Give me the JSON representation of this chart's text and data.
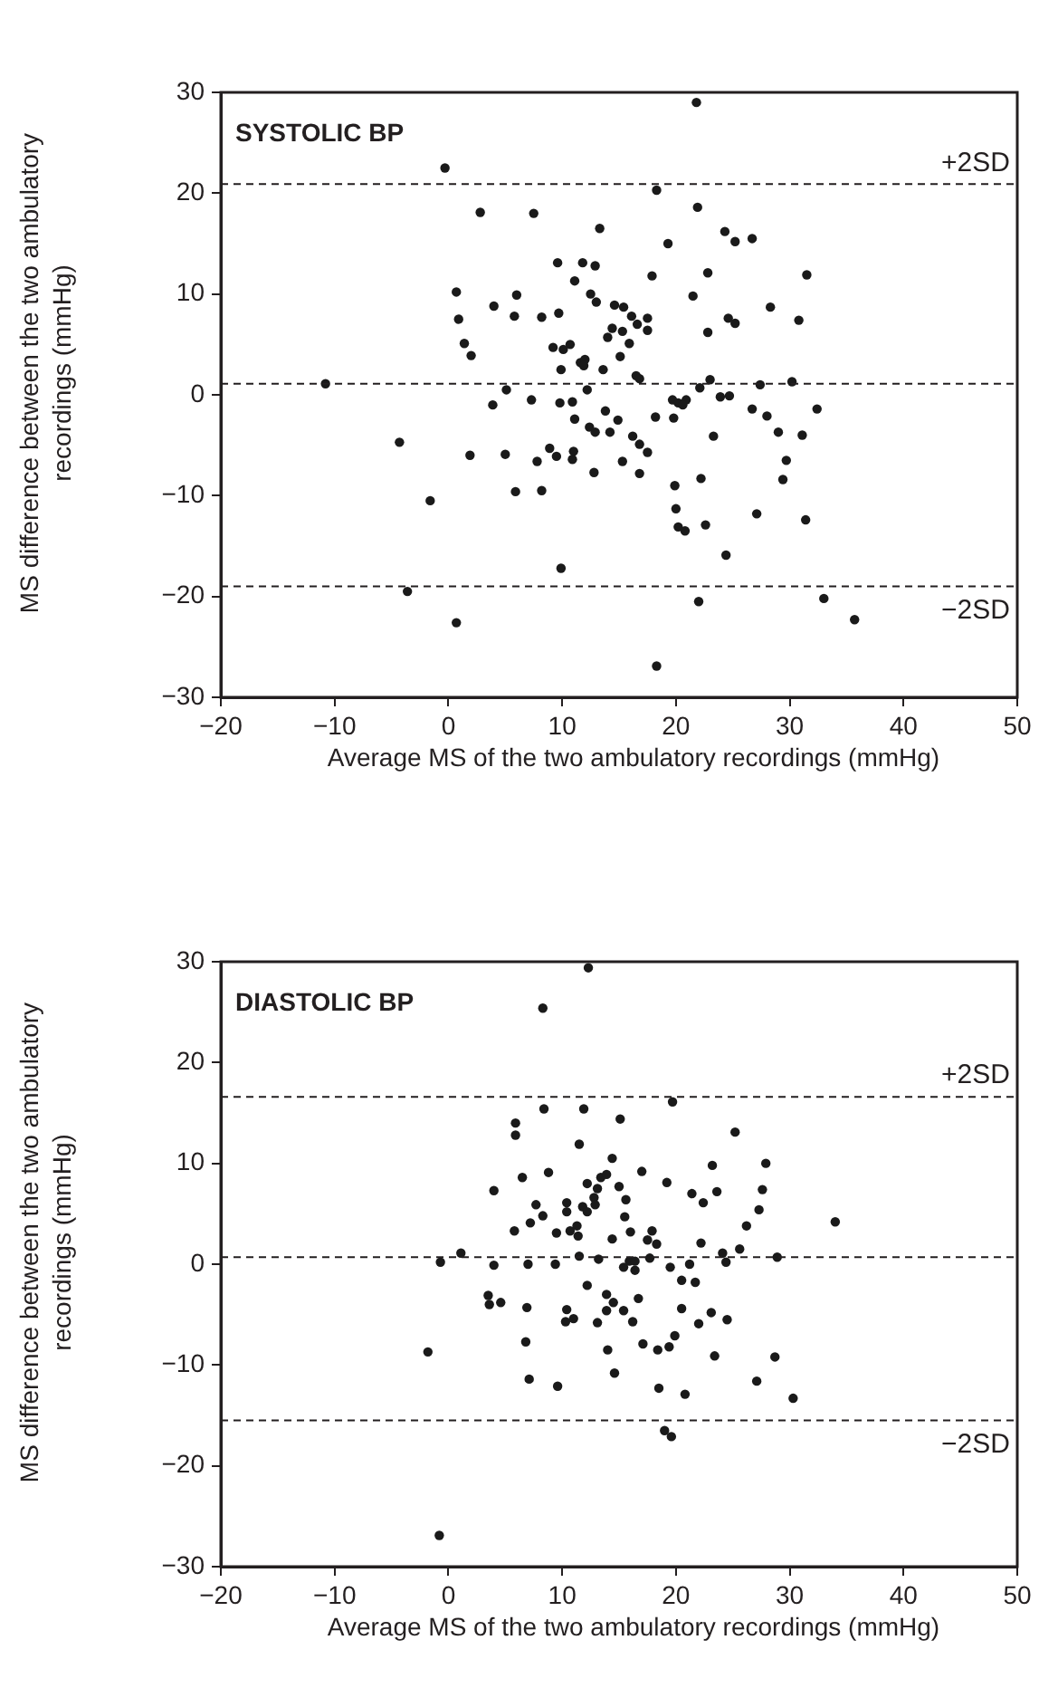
{
  "chart_data": [
    {
      "type": "scatter",
      "annotations": [
        "SYSTOLIC BP"
      ],
      "xlabel": "Average MS of the two ambulatory recordings (mmHg)",
      "ylabel": "MS difference between the two ambulatory recordings (mmHg)",
      "color": "#1a1a1a",
      "marker": "circle",
      "grid": false,
      "legend": false,
      "xlim": [
        -20,
        50
      ],
      "xticks": [
        -20,
        -10,
        0,
        10,
        20,
        30,
        40,
        50
      ],
      "ylim": [
        -30,
        30
      ],
      "yticks": [
        -30,
        -20,
        -10,
        0,
        10,
        20,
        30
      ],
      "ref_lines": [
        {
          "axis": "y",
          "value": 20.9,
          "label": "+2SD",
          "line_style": "dashed"
        },
        {
          "axis": "y",
          "value": 1.1,
          "line_style": "dashed"
        },
        {
          "axis": "y",
          "value": -19.0,
          "label": "−2SD",
          "line_style": "dashed"
        }
      ],
      "x": [
        -0.3,
        2.8,
        7.5,
        13.3,
        9.6,
        11.8,
        12.9,
        11.1,
        0.7,
        6.0,
        12.5,
        13.0,
        4.0,
        14.6,
        15.4,
        16.1,
        0.9,
        5.8,
        8.2,
        9.7,
        14.4,
        15.3,
        14.0,
        15.9,
        1.4,
        2.0,
        9.2,
        10.1,
        10.7,
        15.1,
        11.6,
        12.0,
        11.9,
        9.9,
        13.6,
        -10.8,
        12.2,
        5.1,
        3.9,
        7.3,
        9.8,
        10.9,
        11.1,
        13.8,
        14.9,
        12.4,
        12.9,
        14.2,
        16.2,
        -4.3,
        1.9,
        5.0,
        8.9,
        9.5,
        11.0,
        10.9,
        7.8,
        15.3,
        12.8,
        5.9,
        8.2,
        -1.6,
        9.9,
        -3.6,
        0.7,
        21.8,
        18.3,
        21.9,
        19.3,
        24.3,
        25.2,
        26.7,
        17.9,
        22.8,
        31.5,
        21.5,
        28.3,
        16.6,
        17.5,
        17.5,
        24.6,
        25.2,
        22.8,
        30.8,
        16.5,
        16.8,
        23.0,
        22.1,
        27.4,
        30.2,
        19.7,
        20.2,
        20.9,
        20.6,
        23.9,
        24.7,
        32.4,
        18.2,
        19.8,
        26.7,
        28.0,
        23.3,
        29.0,
        31.1,
        16.8,
        17.5,
        16.8,
        29.7,
        29.4,
        19.9,
        22.2,
        20.0,
        20.2,
        20.8,
        22.6,
        27.1,
        31.4,
        24.4,
        22.0,
        33.0,
        35.7,
        18.3
      ],
      "values": [
        22.5,
        18.1,
        18.0,
        16.5,
        13.1,
        13.1,
        12.8,
        11.3,
        10.2,
        9.9,
        10.0,
        9.2,
        8.8,
        8.9,
        8.7,
        7.8,
        7.5,
        7.8,
        7.7,
        8.1,
        6.6,
        6.3,
        5.7,
        5.1,
        5.1,
        3.9,
        4.7,
        4.5,
        5.0,
        3.8,
        3.2,
        3.5,
        2.9,
        2.5,
        2.5,
        1.1,
        0.5,
        0.5,
        -1.0,
        -0.5,
        -0.8,
        -0.7,
        -2.4,
        -1.6,
        -2.5,
        -3.2,
        -3.7,
        -3.7,
        -4.1,
        -4.7,
        -6.0,
        -5.9,
        -5.3,
        -6.1,
        -5.6,
        -6.4,
        -6.6,
        -6.6,
        -7.7,
        -9.6,
        -9.5,
        -10.5,
        -17.2,
        -19.5,
        -22.6,
        29.0,
        20.3,
        18.6,
        15.0,
        16.2,
        15.2,
        15.5,
        11.8,
        12.1,
        11.9,
        9.8,
        8.7,
        7.0,
        7.6,
        6.4,
        7.6,
        7.1,
        6.2,
        7.4,
        1.9,
        1.6,
        1.5,
        0.7,
        1.0,
        1.3,
        -0.5,
        -0.8,
        -0.5,
        -1.0,
        -0.2,
        -0.1,
        -1.4,
        -2.2,
        -2.3,
        -1.4,
        -2.1,
        -4.1,
        -3.7,
        -4.0,
        -4.9,
        -5.7,
        -7.8,
        -6.5,
        -8.4,
        -9.0,
        -8.3,
        -11.3,
        -13.1,
        -13.5,
        -12.9,
        -11.8,
        -12.4,
        -15.9,
        -20.5,
        -20.2,
        -22.3,
        -26.9
      ]
    },
    {
      "type": "scatter",
      "annotations": [
        "DIASTOLIC BP"
      ],
      "xlabel": "Average MS of the two ambulatory recordings (mmHg)",
      "ylabel": "MS difference between the two ambulatory recordings (mmHg)",
      "color": "#1a1a1a",
      "marker": "circle",
      "grid": false,
      "legend": false,
      "xlim": [
        -20,
        50
      ],
      "xticks": [
        -20,
        -10,
        0,
        10,
        20,
        30,
        40,
        50
      ],
      "ylim": [
        -30,
        30
      ],
      "yticks": [
        -30,
        -20,
        -10,
        0,
        10,
        20,
        30
      ],
      "ref_lines": [
        {
          "axis": "y",
          "value": 16.6,
          "label": "+2SD",
          "line_style": "dashed"
        },
        {
          "axis": "y",
          "value": 0.7,
          "line_style": "dashed"
        },
        {
          "axis": "y",
          "value": -15.5,
          "label": "−2SD",
          "line_style": "dashed"
        }
      ],
      "x": [
        12.3,
        8.3,
        8.4,
        11.9,
        15.1,
        5.9,
        5.9,
        11.5,
        14.4,
        8.8,
        6.5,
        13.4,
        13.9,
        12.2,
        13.1,
        15.0,
        4.0,
        12.8,
        15.6,
        7.7,
        10.4,
        11.8,
        10.4,
        12.2,
        12.9,
        8.3,
        7.2,
        15.5,
        5.8,
        9.5,
        10.7,
        11.3,
        11.4,
        16.0,
        14.4,
        1.1,
        -0.7,
        4.0,
        7.0,
        9.4,
        11.5,
        13.2,
        15.4,
        15.9,
        12.2,
        3.5,
        3.6,
        4.6,
        6.9,
        13.9,
        14.5,
        13.9,
        15.4,
        16.2,
        10.4,
        11.0,
        10.3,
        13.1,
        6.8,
        14.0,
        -1.8,
        14.6,
        7.1,
        9.6,
        -0.8,
        19.7,
        25.2,
        23.2,
        27.9,
        17.0,
        19.2,
        21.4,
        22.4,
        23.6,
        27.6,
        27.3,
        26.2,
        34.0,
        17.9,
        17.5,
        18.3,
        22.2,
        25.6,
        24.1,
        24.4,
        28.9,
        17.7,
        16.4,
        16.4,
        19.5,
        21.2,
        20.5,
        21.7,
        16.7,
        20.5,
        23.1,
        22.0,
        24.5,
        19.9,
        17.1,
        18.4,
        19.4,
        23.4,
        28.7,
        18.5,
        20.8,
        27.1,
        30.3,
        19.0,
        19.6
      ],
      "values": [
        29.4,
        25.4,
        15.4,
        15.4,
        14.4,
        14.0,
        12.8,
        11.9,
        10.5,
        9.1,
        8.6,
        8.6,
        8.9,
        8.0,
        7.5,
        7.7,
        7.3,
        6.6,
        6.4,
        5.9,
        6.1,
        5.7,
        5.2,
        5.2,
        5.9,
        4.8,
        4.1,
        4.7,
        3.3,
        3.1,
        3.3,
        3.8,
        2.8,
        3.2,
        2.5,
        1.1,
        0.2,
        -0.1,
        0.0,
        0.0,
        0.8,
        0.5,
        -0.3,
        0.3,
        -2.1,
        -3.1,
        -4.0,
        -3.8,
        -4.3,
        -3.0,
        -3.8,
        -4.6,
        -4.6,
        -5.7,
        -4.5,
        -5.4,
        -5.7,
        -5.8,
        -7.7,
        -8.5,
        -8.7,
        -10.8,
        -11.4,
        -12.1,
        -26.9,
        16.1,
        13.1,
        9.8,
        10.0,
        9.2,
        8.1,
        7.0,
        6.1,
        7.2,
        7.4,
        5.4,
        3.8,
        4.2,
        3.3,
        2.4,
        2.0,
        2.1,
        1.5,
        1.1,
        0.2,
        0.7,
        0.6,
        0.3,
        -0.6,
        -0.3,
        0.0,
        -1.6,
        -1.8,
        -3.4,
        -4.4,
        -4.8,
        -5.9,
        -5.5,
        -7.1,
        -7.9,
        -8.5,
        -8.2,
        -9.1,
        -9.2,
        -12.3,
        -12.9,
        -11.6,
        -13.3,
        -16.5,
        -17.1
      ]
    }
  ]
}
